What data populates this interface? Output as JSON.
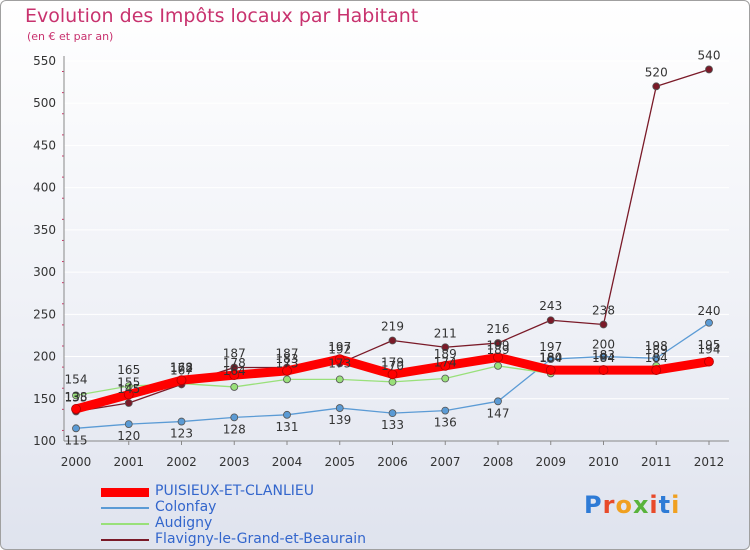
{
  "title": "Evolution des Impôts locaux par Habitant",
  "subtitle": "(en € et par an)",
  "logo": {
    "text": "Proxiti",
    "colors": [
      "#2e7bd6",
      "#e84a2a",
      "#f0a020",
      "#59b33c",
      "#e84a2a",
      "#2e7bd6",
      "#f0a020"
    ]
  },
  "chart_data": {
    "type": "line",
    "categories": [
      "2000",
      "2001",
      "2002",
      "2003",
      "2004",
      "2005",
      "2006",
      "2007",
      "2008",
      "2009",
      "2010",
      "2011",
      "2012"
    ],
    "ylim": [
      100,
      550
    ],
    "yticks": [
      100,
      150,
      200,
      250,
      300,
      350,
      400,
      450,
      500,
      550
    ],
    "series": [
      {
        "name": "PUISIEUX-ET-CLANLIEU",
        "color": "#ff0000",
        "values": [
          138,
          155,
          172,
          178,
          183,
          197,
          179,
          189,
          199,
          184,
          184,
          184,
          194
        ]
      },
      {
        "name": "Colonfay",
        "color": "#5b9bd5",
        "values": [
          115,
          120,
          123,
          128,
          131,
          139,
          133,
          136,
          147,
          197,
          200,
          198,
          240
        ]
      },
      {
        "name": "Audigny",
        "color": "#99e07a",
        "values": [
          154,
          165,
          168,
          164,
          173,
          173,
          170,
          174,
          189,
          180,
          183,
          189,
          195
        ]
      },
      {
        "name": "Flavigny-le-Grand-et-Beaurain",
        "color": "#7a1a28",
        "values": [
          135,
          145,
          167,
          187,
          187,
          192,
          219,
          211,
          216,
          243,
          238,
          520,
          540
        ]
      }
    ]
  }
}
